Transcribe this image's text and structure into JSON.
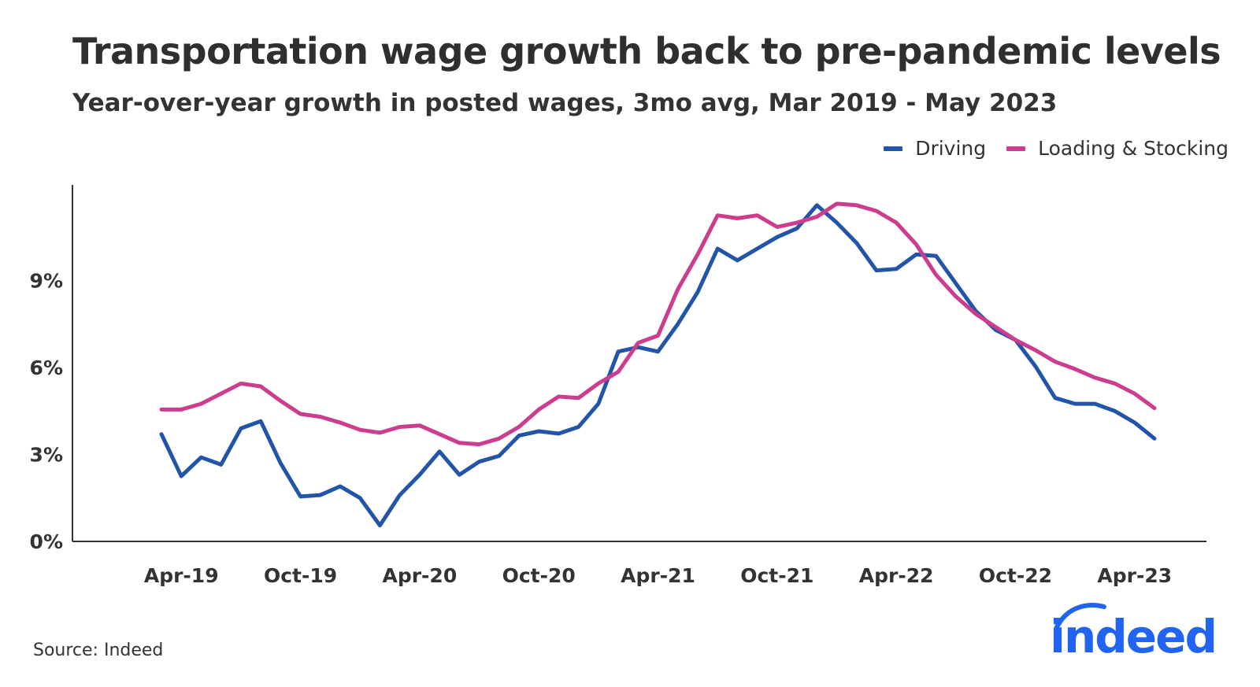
{
  "header": {
    "title": "Transportation wage growth back to pre-pandemic levels",
    "subtitle": "Year-over-year growth in posted wages, 3mo avg, Mar 2019 - May 2023"
  },
  "footer": {
    "source": "Source: Indeed",
    "logo_text": "indeed"
  },
  "colors": {
    "driving": "#2255a8",
    "loading": "#cc3d8e",
    "axis": "#333333",
    "logo": "#2164f3"
  },
  "chart_data": {
    "type": "line",
    "title": "Transportation wage growth back to pre-pandemic levels",
    "subtitle": "Year-over-year growth in posted wages, 3mo avg, Mar 2019 - May 2023",
    "xlabel": "",
    "ylabel": "",
    "x": [
      "2019-03",
      "2019-04",
      "2019-05",
      "2019-06",
      "2019-07",
      "2019-08",
      "2019-09",
      "2019-10",
      "2019-11",
      "2019-12",
      "2020-01",
      "2020-02",
      "2020-03",
      "2020-04",
      "2020-05",
      "2020-06",
      "2020-07",
      "2020-08",
      "2020-09",
      "2020-10",
      "2020-11",
      "2020-12",
      "2021-01",
      "2021-02",
      "2021-03",
      "2021-04",
      "2021-05",
      "2021-06",
      "2021-07",
      "2021-08",
      "2021-09",
      "2021-10",
      "2021-11",
      "2021-12",
      "2022-01",
      "2022-02",
      "2022-03",
      "2022-04",
      "2022-05",
      "2022-06",
      "2022-07",
      "2022-08",
      "2022-09",
      "2022-10",
      "2022-11",
      "2022-12",
      "2023-01",
      "2023-02",
      "2023-03",
      "2023-04",
      "2023-05"
    ],
    "x_ticks": [
      {
        "x": "2019-04",
        "label": "Apr-19"
      },
      {
        "x": "2019-10",
        "label": "Oct-19"
      },
      {
        "x": "2020-04",
        "label": "Apr-20"
      },
      {
        "x": "2020-10",
        "label": "Oct-20"
      },
      {
        "x": "2021-04",
        "label": "Apr-21"
      },
      {
        "x": "2021-10",
        "label": "Oct-21"
      },
      {
        "x": "2022-04",
        "label": "Apr-22"
      },
      {
        "x": "2022-10",
        "label": "Oct-22"
      },
      {
        "x": "2023-04",
        "label": "Apr-23"
      }
    ],
    "y_ticks": [
      {
        "value": 0,
        "label": "0%"
      },
      {
        "value": 3,
        "label": "3%"
      },
      {
        "value": 6,
        "label": "6%"
      },
      {
        "value": 9,
        "label": "9%"
      }
    ],
    "ylim": [
      0,
      12.3
    ],
    "grid": false,
    "legend_position": "top-right",
    "series": [
      {
        "name": "Driving",
        "color": "#2255a8",
        "values": [
          3.7,
          2.25,
          2.9,
          2.65,
          3.9,
          4.15,
          2.7,
          1.55,
          1.6,
          1.9,
          1.5,
          0.55,
          1.6,
          2.3,
          3.1,
          2.3,
          2.75,
          2.95,
          3.65,
          3.8,
          3.72,
          3.95,
          4.75,
          6.55,
          6.7,
          6.55,
          7.5,
          8.6,
          10.1,
          9.7,
          10.1,
          10.5,
          10.8,
          11.6,
          11.0,
          10.3,
          9.35,
          9.4,
          9.9,
          9.85,
          8.9,
          7.95,
          7.3,
          6.95,
          6.05,
          4.95,
          4.75,
          4.75,
          4.5,
          4.1,
          3.55
        ]
      },
      {
        "name": "Loading & Stocking",
        "color": "#cc3d8e",
        "values": [
          4.55,
          4.55,
          4.75,
          5.1,
          5.45,
          5.35,
          4.85,
          4.4,
          4.3,
          4.1,
          3.85,
          3.75,
          3.95,
          4.0,
          3.7,
          3.4,
          3.35,
          3.55,
          3.95,
          4.55,
          5.0,
          4.95,
          5.45,
          5.85,
          6.85,
          7.1,
          8.7,
          9.9,
          11.25,
          11.15,
          11.25,
          10.85,
          11.0,
          11.2,
          11.65,
          11.6,
          11.4,
          11.0,
          10.25,
          9.2,
          8.45,
          7.85,
          7.4,
          6.95,
          6.6,
          6.2,
          5.95,
          5.65,
          5.45,
          5.1,
          4.6
        ]
      }
    ]
  }
}
